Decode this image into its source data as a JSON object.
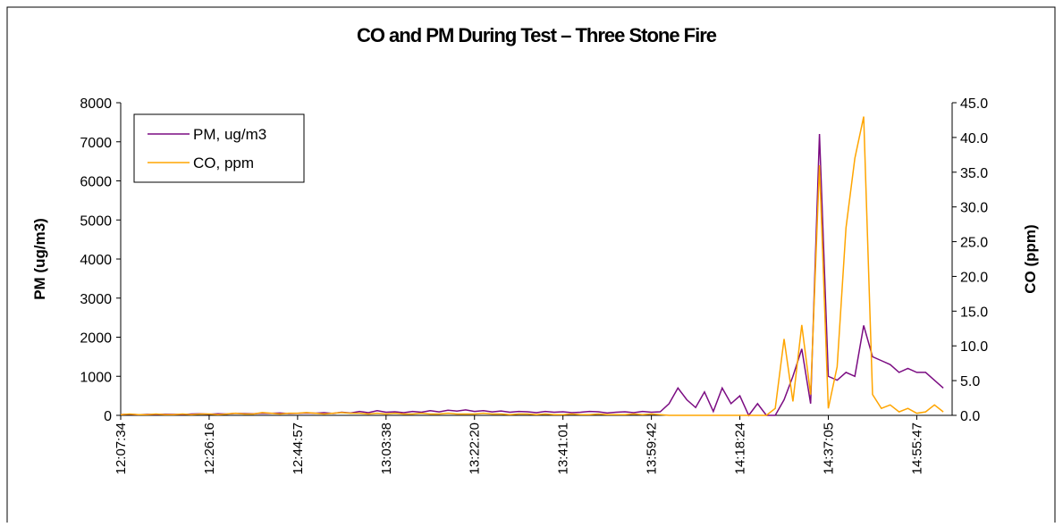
{
  "chart_data": {
    "type": "line",
    "title": "CO and PM During Test – Three Stone Fire",
    "ylabel": "PM (ug/m3)",
    "y2label": "CO (ppm)",
    "categories": [
      "12:07:34",
      null,
      null,
      null,
      null,
      null,
      null,
      null,
      null,
      null,
      "12:26:16",
      null,
      null,
      null,
      null,
      null,
      null,
      null,
      null,
      null,
      "12:44:57",
      null,
      null,
      null,
      null,
      null,
      null,
      null,
      null,
      null,
      "13:03:38",
      null,
      null,
      null,
      null,
      null,
      null,
      null,
      null,
      null,
      "13:22:20",
      null,
      null,
      null,
      null,
      null,
      null,
      null,
      null,
      null,
      "13:41:01",
      null,
      null,
      null,
      null,
      null,
      null,
      null,
      null,
      null,
      "13:59:42",
      null,
      null,
      null,
      null,
      null,
      null,
      null,
      null,
      null,
      "14:18:24",
      null,
      null,
      null,
      null,
      null,
      null,
      null,
      null,
      null,
      "14:37:05",
      null,
      null,
      null,
      null,
      null,
      null,
      null,
      null,
      null,
      "14:55:47",
      null,
      null,
      null
    ],
    "ylim": [
      0,
      8000
    ],
    "yticks": [
      0,
      1000,
      2000,
      3000,
      4000,
      5000,
      6000,
      7000,
      8000
    ],
    "y2lim": [
      0,
      45
    ],
    "y2ticks": [
      {
        "value": 0,
        "label": "0.0"
      },
      {
        "value": 5,
        "label": "5.0"
      },
      {
        "value": 10,
        "label": "10.0"
      },
      {
        "value": 15,
        "label": "15.0"
      },
      {
        "value": 20,
        "label": "20.0"
      },
      {
        "value": 25,
        "label": "25.0"
      },
      {
        "value": 30,
        "label": "30.0"
      },
      {
        "value": 35,
        "label": "35.0"
      },
      {
        "value": 40,
        "label": "40.0"
      },
      {
        "value": 45,
        "label": "45.0"
      }
    ],
    "legend": "upper left",
    "series": [
      {
        "name": "PM, ug/m3",
        "color": "#7b0c82",
        "values": [
          20,
          30,
          15,
          25,
          20,
          30,
          25,
          20,
          35,
          40,
          30,
          40,
          35,
          50,
          45,
          40,
          55,
          50,
          60,
          45,
          50,
          60,
          55,
          70,
          50,
          80,
          60,
          100,
          70,
          120,
          80,
          90,
          70,
          100,
          80,
          120,
          90,
          130,
          110,
          140,
          100,
          120,
          90,
          110,
          80,
          100,
          90,
          70,
          100,
          80,
          90,
          70,
          80,
          100,
          90,
          60,
          80,
          90,
          70,
          100,
          80,
          90,
          300,
          700,
          400,
          200,
          600,
          100,
          700,
          300,
          500,
          0,
          300,
          0,
          0,
          400,
          1000,
          1700,
          300,
          7200,
          1000,
          900,
          1100,
          1000,
          2300,
          1500,
          1400,
          1300,
          1100,
          1200,
          1100,
          1100,
          900,
          700
        ]
      },
      {
        "name": "CO, ppm",
        "color": "#ffa500",
        "axis": "y2",
        "values": [
          0.1,
          0.2,
          0.1,
          0.1,
          0.2,
          0.1,
          0.1,
          0.2,
          0.1,
          0.2,
          0.2,
          0.1,
          0.2,
          0.3,
          0.2,
          0.2,
          0.4,
          0.3,
          0.2,
          0.3,
          0.3,
          0.4,
          0.3,
          0.2,
          0.3,
          0.4,
          0.3,
          0.3,
          0.2,
          0.3,
          0.2,
          0.3,
          0.2,
          0.2,
          0.3,
          0.2,
          0.2,
          0.3,
          0.2,
          0.2,
          0.2,
          0.3,
          0.2,
          0.2,
          0.1,
          0.2,
          0.2,
          0.1,
          0.2,
          0.1,
          0.1,
          0.2,
          0.1,
          0.1,
          0.2,
          0.1,
          0.1,
          0.1,
          0.2,
          0.1,
          0.2,
          0.1,
          0,
          0,
          0,
          0,
          0,
          0,
          0,
          0,
          0,
          0,
          0,
          0,
          1.0,
          11,
          2,
          13,
          3,
          36,
          1,
          7,
          27,
          37,
          43,
          3,
          1,
          1.5,
          0.5,
          1,
          0.3,
          0.5,
          1.5,
          0.5
        ]
      }
    ]
  }
}
